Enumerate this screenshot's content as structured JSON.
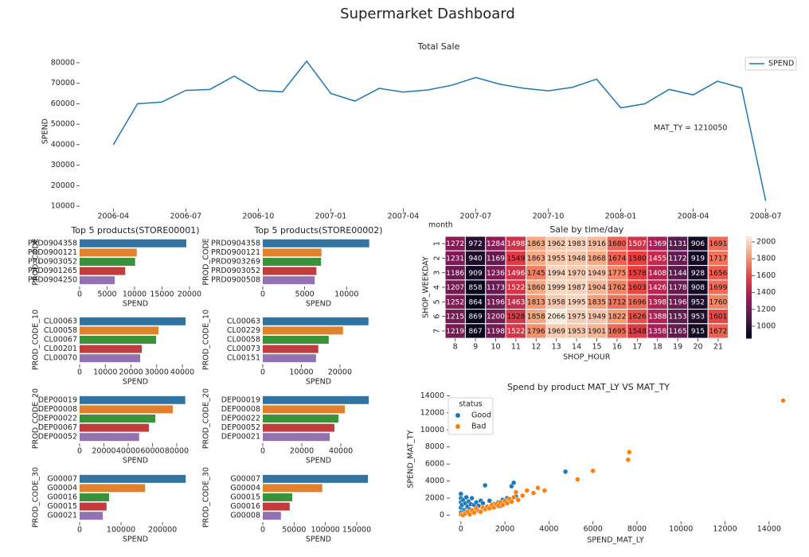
{
  "title": "Supermarket Dashboard",
  "chart_data": [
    {
      "type": "line",
      "title": "Total Sale",
      "ylabel": "SPEND",
      "annotation": "MAT_TY = 1210050",
      "legend": "upper right",
      "x": [
        "2006-04",
        "2006-05",
        "2006-06",
        "2006-07",
        "2006-08",
        "2006-09",
        "2006-10",
        "2006-11",
        "2006-12",
        "2007-01",
        "2007-02",
        "2007-03",
        "2007-04",
        "2007-05",
        "2007-06",
        "2007-07",
        "2007-08",
        "2007-09",
        "2007-10",
        "2007-11",
        "2007-12",
        "2008-01",
        "2008-02",
        "2008-03",
        "2008-04",
        "2008-05",
        "2008-06",
        "2008-07"
      ],
      "series": [
        {
          "name": "SPEND",
          "color": "#1f77b4",
          "values": [
            40000,
            60000,
            60800,
            66500,
            67000,
            73500,
            66500,
            65800,
            80800,
            65000,
            61300,
            67500,
            65700,
            66700,
            69000,
            72800,
            69500,
            67500,
            66300,
            68000,
            72000,
            58000,
            60000,
            67000,
            64300,
            71000,
            67700,
            12500
          ]
        }
      ],
      "xlim": [
        "2006-03",
        "2008-08"
      ],
      "xticks": [
        "2006-04",
        "2006-07",
        "2006-10",
        "2007-01",
        "2007-04",
        "2007-07",
        "2007-10",
        "2008-01",
        "2008-04",
        "2008-07"
      ],
      "ylim": [
        7700,
        85000
      ],
      "yticks": [
        10000,
        20000,
        30000,
        40000,
        50000,
        60000,
        70000,
        80000
      ]
    },
    {
      "type": "bar",
      "title": "Top 5 products(STORE00001)",
      "ylabel": "PROD_CODE",
      "xlabel": "SPEND",
      "categories": [
        "PRD0904358",
        "PRD0900121",
        "PRD0903052",
        "PRD0901265",
        "PRD0904250"
      ],
      "values": [
        19430,
        10400,
        10100,
        8300,
        6400
      ],
      "colors": [
        "#3274a1",
        "#e1812c",
        "#3a923a",
        "#c03d3e",
        "#9372b2"
      ],
      "xlim": [
        0,
        20300
      ],
      "xticks": [
        0,
        5000,
        10000,
        15000,
        20000
      ]
    },
    {
      "type": "bar",
      "ylabel": "PROD_CODE_10",
      "xlabel": "SPEND",
      "categories": [
        "CL00063",
        "CL00058",
        "CL00067",
        "CL00201",
        "CL00070"
      ],
      "values": [
        41240,
        30700,
        29800,
        24200,
        23600
      ],
      "colors": [
        "#3274a1",
        "#e1812c",
        "#3a923a",
        "#c03d3e",
        "#9372b2"
      ],
      "xlim": [
        0,
        43400
      ],
      "xticks": [
        0,
        10000,
        20000,
        30000,
        40000
      ]
    },
    {
      "type": "bar",
      "ylabel": "PROD_CODE_20",
      "xlabel": "SPEND",
      "categories": [
        "DEP00019",
        "DEP00008",
        "DEP00022",
        "DEP00067",
        "DEP00052"
      ],
      "values": [
        87000,
        76700,
        62300,
        57000,
        49000
      ],
      "colors": [
        "#3274a1",
        "#e1812c",
        "#3a923a",
        "#c03d3e",
        "#9372b2"
      ],
      "xlim": [
        0,
        91800
      ],
      "xticks": [
        0,
        20000,
        40000,
        60000,
        80000
      ]
    },
    {
      "type": "bar",
      "ylabel": "PROD_CODE_30",
      "xlabel": "SPEND",
      "categories": [
        "G00007",
        "G00004",
        "G00016",
        "G00015",
        "G00021"
      ],
      "values": [
        256000,
        158000,
        71000,
        65000,
        56000
      ],
      "colors": [
        "#3274a1",
        "#e1812c",
        "#3a923a",
        "#c03d3e",
        "#9372b2"
      ],
      "xlim": [
        0,
        269000
      ],
      "xticks": [
        0,
        100000,
        200000
      ]
    },
    {
      "type": "bar",
      "title": "Top 5 products(STORE00002)",
      "ylabel": "PROD_CODE",
      "xlabel": "SPEND",
      "categories": [
        "PRD0904358",
        "PRD0900121",
        "PRD0903269",
        "PRD0903052",
        "PRD0900508"
      ],
      "values": [
        12700,
        7000,
        6950,
        6400,
        6200
      ],
      "colors": [
        "#3274a1",
        "#e1812c",
        "#3a923a",
        "#c03d3e",
        "#9372b2"
      ],
      "xlim": [
        0,
        13300
      ],
      "xticks": [
        0,
        5000,
        10000
      ]
    },
    {
      "type": "bar",
      "ylabel": "PROD_CODE_10",
      "xlabel": "SPEND",
      "categories": [
        "CL00063",
        "CL00229",
        "CL00058",
        "CL00073",
        "CL00151"
      ],
      "values": [
        27400,
        20800,
        17100,
        14400,
        13800
      ],
      "colors": [
        "#3274a1",
        "#e1812c",
        "#3a923a",
        "#c03d3e",
        "#9372b2"
      ],
      "xlim": [
        0,
        28900
      ],
      "xticks": [
        0,
        10000,
        20000
      ]
    },
    {
      "type": "bar",
      "ylabel": "PROD_CODE_20",
      "xlabel": "SPEND",
      "categories": [
        "DEP00019",
        "DEP00008",
        "DEP00022",
        "DEP00052",
        "DEP00021"
      ],
      "values": [
        54300,
        42000,
        38800,
        36700,
        34300
      ],
      "colors": [
        "#3274a1",
        "#e1812c",
        "#3a923a",
        "#c03d3e",
        "#9372b2"
      ],
      "xlim": [
        0,
        57100
      ],
      "xticks": [
        0,
        20000,
        40000
      ]
    },
    {
      "type": "bar",
      "ylabel": "PROD_CODE_30",
      "xlabel": "SPEND",
      "categories": [
        "G00007",
        "G00004",
        "G00015",
        "G00016",
        "G00008"
      ],
      "values": [
        168000,
        95000,
        47000,
        43000,
        29000
      ],
      "colors": [
        "#3274a1",
        "#e1812c",
        "#3a923a",
        "#c03d3e",
        "#9372b2"
      ],
      "xlim": [
        0,
        178000
      ],
      "xticks": [
        0,
        50000,
        100000,
        150000
      ]
    },
    {
      "type": "heatmap",
      "title": "Sale by time/day",
      "annotation": "month",
      "xlabel": "SHOP_HOUR",
      "ylabel": "SHOP_WEEKDAY",
      "x_categories": [
        8,
        9,
        10,
        11,
        12,
        13,
        14,
        15,
        16,
        17,
        18,
        19,
        20,
        21
      ],
      "y_categories": [
        1,
        2,
        3,
        4,
        5,
        6,
        7
      ],
      "values": [
        [
          1272,
          972,
          1284,
          1498,
          1863,
          1962,
          1983,
          1916,
          1680,
          1507,
          1369,
          1131,
          906,
          1691
        ],
        [
          1231,
          940,
          1169,
          1549,
          1863,
          1955,
          1948,
          1868,
          1674,
          1580,
          1455,
          1172,
          919,
          1717
        ],
        [
          1186,
          909,
          1236,
          1496,
          1745,
          1994,
          1970,
          1949,
          1775,
          1578,
          1408,
          1144,
          928,
          1656
        ],
        [
          1207,
          858,
          1173,
          1522,
          1860,
          1999,
          1987,
          1904,
          1762,
          1603,
          1426,
          1178,
          908,
          1699
        ],
        [
          1252,
          864,
          1196,
          1463,
          1813,
          1958,
          1995,
          1835,
          1712,
          1696,
          1398,
          1196,
          952,
          1760
        ],
        [
          1215,
          869,
          1200,
          1528,
          1858,
          2066,
          1975,
          1949,
          1822,
          1626,
          1388,
          1153,
          953,
          1601
        ],
        [
          1219,
          867,
          1198,
          1522,
          1796,
          1969,
          1953,
          1901,
          1695,
          1548,
          1358,
          1165,
          915,
          1672
        ]
      ],
      "clim": [
        858,
        2066
      ],
      "cticks": [
        1000,
        1200,
        1400,
        1600,
        1800,
        2000
      ]
    },
    {
      "type": "scatter",
      "title": "Spend by product MAT_LY VS MAT_TY",
      "xlabel": "SPEND_MAT_LY",
      "ylabel": "SPEND_MAT_TY",
      "legend_title": "status",
      "legend": "upper left",
      "series": [
        {
          "name": "Good",
          "color": "#1f77b4",
          "x": [
            0,
            0,
            0,
            0,
            50,
            100,
            150,
            200,
            250,
            300,
            350,
            400,
            450,
            500,
            600,
            700,
            800,
            900,
            1000,
            1100,
            1200,
            1300,
            1500,
            1700,
            1900,
            2100,
            2300,
            2400,
            2500,
            2300,
            4750,
            0,
            200,
            600,
            1400,
            1800
          ],
          "values": [
            2500,
            2000,
            1500,
            900,
            1200,
            1800,
            600,
            1400,
            2100,
            1000,
            1600,
            700,
            1300,
            2000,
            1200,
            1500,
            1100,
            1700,
            1400,
            3500,
            1000,
            1700,
            1300,
            1500,
            1800,
            2000,
            3400,
            3800,
            2200,
            1600,
            5100,
            300,
            400,
            500,
            900,
            1100
          ]
        },
        {
          "name": "Bad",
          "color": "#ff7f0e",
          "x": [
            0,
            100,
            200,
            300,
            400,
            500,
            600,
            700,
            800,
            900,
            1000,
            1100,
            1200,
            1300,
            1400,
            1500,
            1600,
            1700,
            1800,
            1900,
            2000,
            2100,
            2200,
            2300,
            2400,
            2500,
            2600,
            2800,
            3000,
            3300,
            3500,
            3800,
            5300,
            6000,
            7600,
            7650,
            14640
          ],
          "values": [
            100,
            0,
            200,
            400,
            100,
            600,
            300,
            800,
            500,
            400,
            900,
            700,
            1000,
            800,
            1200,
            900,
            1300,
            1100,
            1500,
            1200,
            1700,
            1400,
            1900,
            1600,
            2100,
            2700,
            1800,
            2300,
            2900,
            2600,
            3200,
            2900,
            4200,
            5200,
            6500,
            7400,
            13430
          ]
        }
      ],
      "xlim": [
        -500,
        15200
      ],
      "xticks": [
        0,
        2000,
        4000,
        6000,
        8000,
        10000,
        12000,
        14000
      ],
      "ylim": [
        -700,
        14500
      ],
      "yticks": [
        0,
        2000,
        4000,
        6000,
        8000,
        10000,
        12000,
        14000
      ]
    }
  ]
}
